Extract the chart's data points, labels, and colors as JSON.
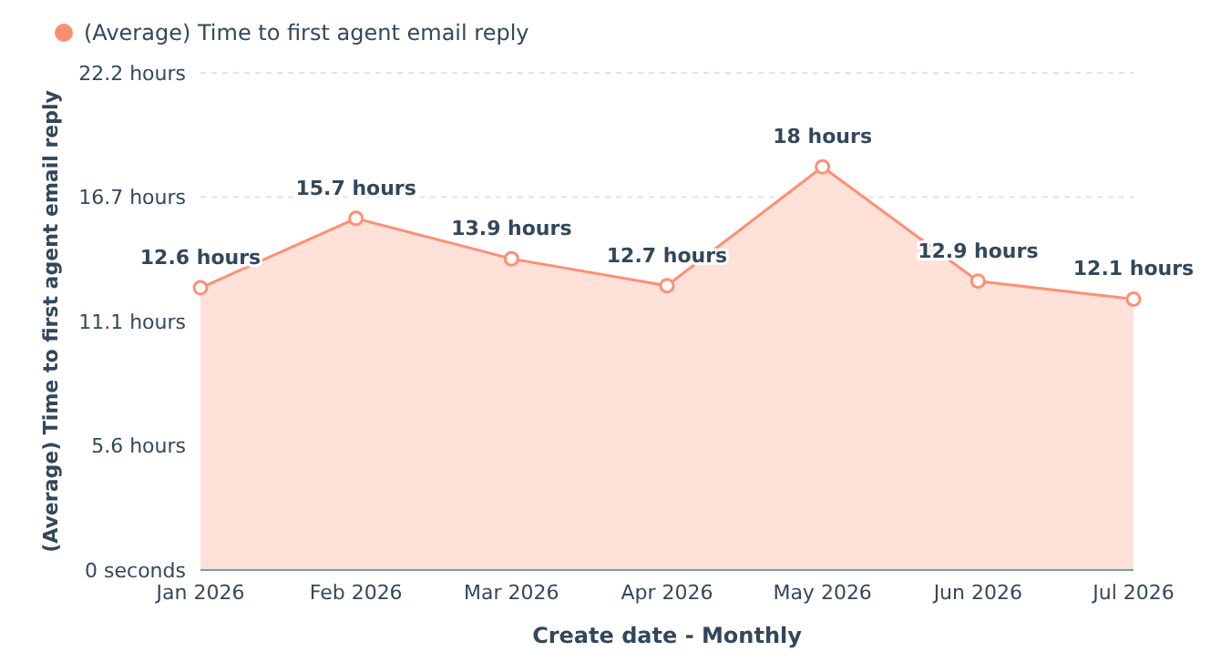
{
  "chart_data": {
    "type": "area",
    "xlabel": "Create date - Monthly",
    "ylabel": "(Average) Time to first agent email reply",
    "categories": [
      "Jan 2026",
      "Feb 2026",
      "Mar 2026",
      "Apr 2026",
      "May 2026",
      "Jun 2026",
      "Jul 2026"
    ],
    "series": [
      {
        "name": "(Average) Time to first agent email reply",
        "color": "#ff8f73",
        "values": [
          12.6,
          15.7,
          13.9,
          12.7,
          18,
          12.9,
          12.1
        ],
        "value_labels": [
          "12.6 hours",
          "15.7 hours",
          "13.9 hours",
          "12.7 hours",
          "18 hours",
          "12.9 hours",
          "12.1 hours"
        ]
      }
    ],
    "ylim": [
      0,
      22.2
    ],
    "yticks": [
      {
        "value": 0,
        "label": "0 seconds"
      },
      {
        "value": 5.55,
        "label": "5.6 hours"
      },
      {
        "value": 11.1,
        "label": "11.1 hours"
      },
      {
        "value": 16.65,
        "label": "16.7 hours"
      },
      {
        "value": 22.2,
        "label": "22.2 hours"
      }
    ],
    "grid": "y",
    "legend": "top left",
    "marker": "circle",
    "line_style": "solid"
  }
}
